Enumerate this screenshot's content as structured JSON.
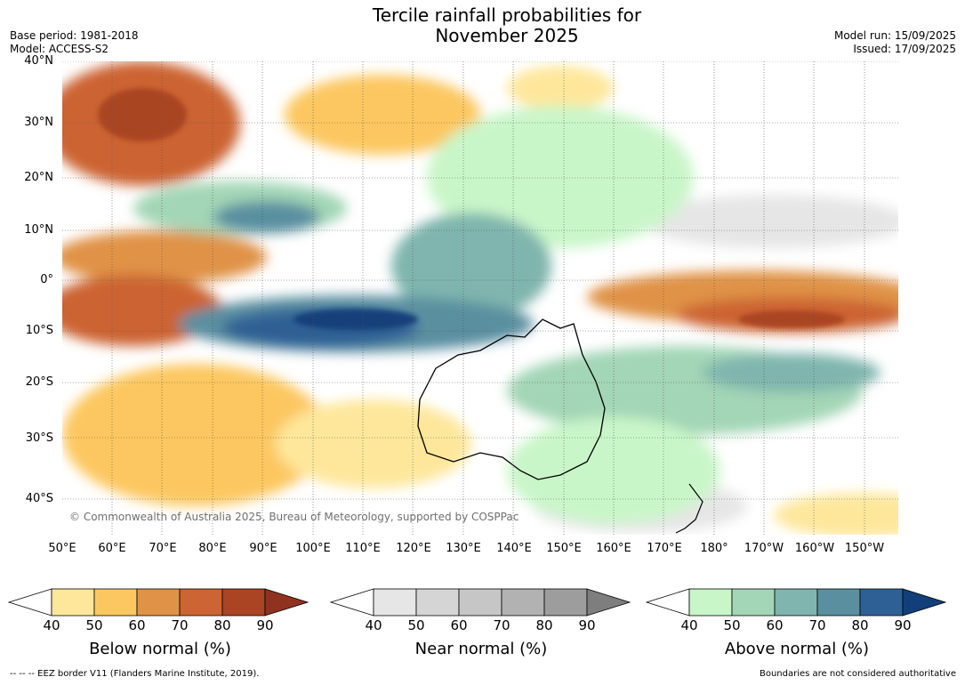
{
  "title": {
    "line1": "Tercile rainfall probabilities for",
    "line2": "November 2025"
  },
  "meta": {
    "base_period": "Base period: 1981-2018",
    "model": "Model: ACCESS-S2",
    "model_run": "Model run: 15/09/2025",
    "issued": "Issued: 17/09/2025"
  },
  "map": {
    "lat_labels": [
      "40°N",
      "30°N",
      "20°N",
      "10°N",
      "0°",
      "10°S",
      "20°S",
      "30°S",
      "40°S"
    ],
    "lon_labels": [
      "50°E",
      "60°E",
      "70°E",
      "80°E",
      "90°E",
      "100°E",
      "110°E",
      "120°E",
      "130°E",
      "140°E",
      "150°E",
      "160°E",
      "170°E",
      "180°",
      "170°W",
      "160°W",
      "150°W"
    ],
    "copyright": "© Commonwealth of Australia 2025, Bureau of Meteorology, supported by COSPPac"
  },
  "colorbars": [
    {
      "label": "Below normal (%)",
      "ticks": [
        "40",
        "50",
        "60",
        "70",
        "80",
        "90"
      ],
      "colors": [
        "#ffffff",
        "#fee79b",
        "#fcc761",
        "#e09347",
        "#cc6433",
        "#aa4423",
        "#8f3220"
      ]
    },
    {
      "label": "Near normal (%)",
      "ticks": [
        "40",
        "50",
        "60",
        "70",
        "80",
        "90"
      ],
      "colors": [
        "#ffffff",
        "#e6e6e6",
        "#d5d5d5",
        "#c6c6c6",
        "#b2b2b2",
        "#9d9d9d",
        "#7e7e7e"
      ]
    },
    {
      "label": "Above normal (%)",
      "ticks": [
        "40",
        "50",
        "60",
        "70",
        "80",
        "90"
      ],
      "colors": [
        "#ffffff",
        "#c9f6c9",
        "#a3d6b6",
        "#7fb5ae",
        "#5a8fa0",
        "#2f6095",
        "#123f7a"
      ]
    }
  ],
  "footer": {
    "eez": "--  --  -- EEZ border V11 (Flanders Marine Institute, 2019).",
    "disclaimer": "Boundaries are not considered authoritative"
  }
}
